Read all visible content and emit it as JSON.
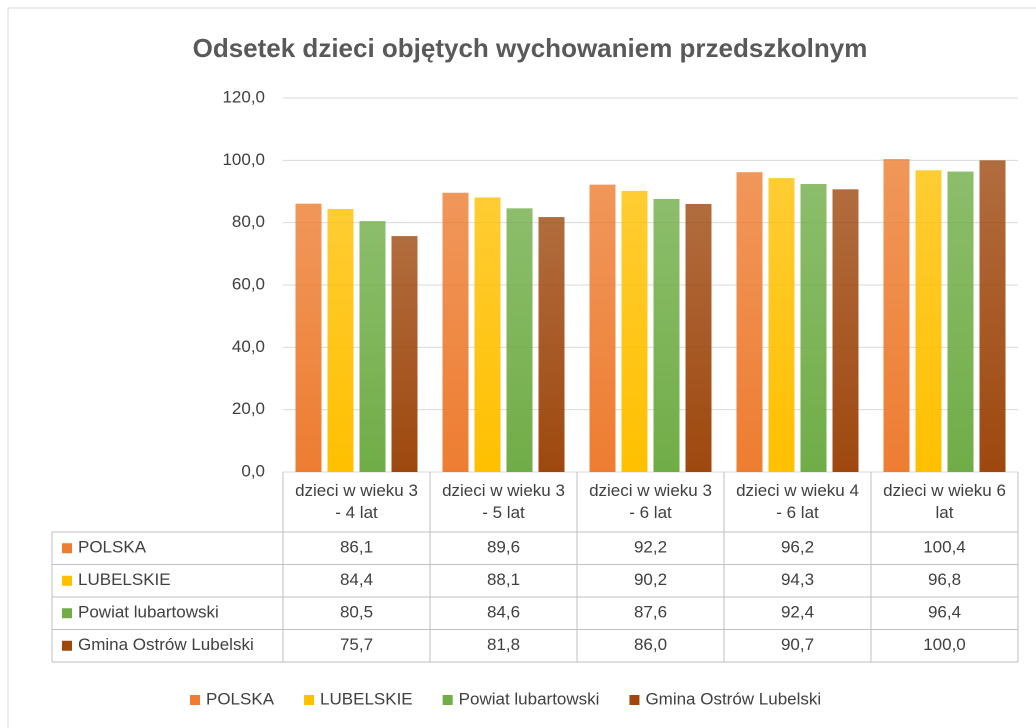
{
  "chart_data": {
    "type": "bar",
    "title": "Odsetek dzieci objętych wychowaniem przedszkolnym",
    "categories": [
      "dzieci w wieku 3 - 4 lat",
      "dzieci w wieku 3 - 5 lat",
      "dzieci w wieku 3 - 6 lat",
      "dzieci w wieku 4 - 6 lat",
      "dzieci w wieku 6 lat"
    ],
    "series": [
      {
        "name": "POLSKA",
        "color": "#ed7d31",
        "values": [
          86.1,
          89.6,
          92.2,
          96.2,
          100.4
        ],
        "value_labels": [
          "86,1",
          "89,6",
          "92,2",
          "96,2",
          "100,4"
        ]
      },
      {
        "name": "LUBELSKIE",
        "color": "#ffc000",
        "values": [
          84.4,
          88.1,
          90.2,
          94.3,
          96.8
        ],
        "value_labels": [
          "84,4",
          "88,1",
          "90,2",
          "94,3",
          "96,8"
        ]
      },
      {
        "name": "Powiat lubartowski",
        "color": "#70ad47",
        "values": [
          80.5,
          84.6,
          87.6,
          92.4,
          96.4
        ],
        "value_labels": [
          "80,5",
          "84,6",
          "87,6",
          "92,4",
          "96,4"
        ]
      },
      {
        "name": "Gmina Ostrów Lubelski",
        "color": "#9e480e",
        "values": [
          75.7,
          81.8,
          86.0,
          90.7,
          100.0
        ],
        "value_labels": [
          "75,7",
          "81,8",
          "86,0",
          "90,7",
          "100,0"
        ]
      }
    ],
    "ylim": [
      0,
      120
    ],
    "yticks": [
      {
        "value": 0,
        "label": "0,0"
      },
      {
        "value": 20,
        "label": "20,0"
      },
      {
        "value": 40,
        "label": "40,0"
      },
      {
        "value": 60,
        "label": "60,0"
      },
      {
        "value": 80,
        "label": "80,0"
      },
      {
        "value": 100,
        "label": "100,0"
      },
      {
        "value": 120,
        "label": "120,0"
      }
    ],
    "grid": true,
    "legend": "bottom"
  }
}
